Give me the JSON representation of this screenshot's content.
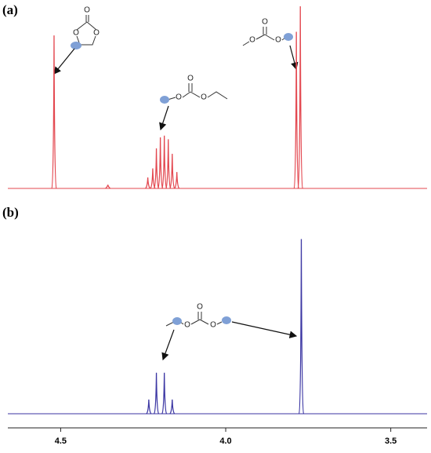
{
  "chart_data": [
    {
      "type": "stem",
      "label": "(a)",
      "color": "#e3474f",
      "xlim": [
        4.66,
        3.39
      ],
      "x": [
        4.52,
        4.357,
        4.236,
        4.221,
        4.21,
        4.198,
        4.186,
        4.174,
        4.162,
        4.148,
        3.786,
        3.774
      ],
      "values": [
        84,
        2,
        6,
        11,
        22,
        28,
        29,
        27,
        19,
        9,
        86,
        100
      ],
      "structures": [
        {
          "atoms": [
            "O",
            "O",
            "O"
          ]
        },
        {
          "atoms": [
            "O",
            "O",
            "O"
          ]
        },
        {
          "atoms": [
            "O",
            "O",
            "O"
          ]
        }
      ]
    },
    {
      "type": "stem",
      "label": "(b)",
      "color": "#3b36a3",
      "xlim": [
        4.66,
        3.39
      ],
      "x": [
        4.233,
        4.21,
        4.186,
        4.162,
        3.771
      ],
      "values": [
        8,
        23,
        23,
        8,
        98
      ],
      "xticks": [
        4.5,
        {
          "value": 4.0,
          "label": "4.0"
        },
        3.5
      ],
      "structures": [
        {
          "atoms": [
            "O",
            "O",
            "O"
          ]
        }
      ]
    }
  ]
}
